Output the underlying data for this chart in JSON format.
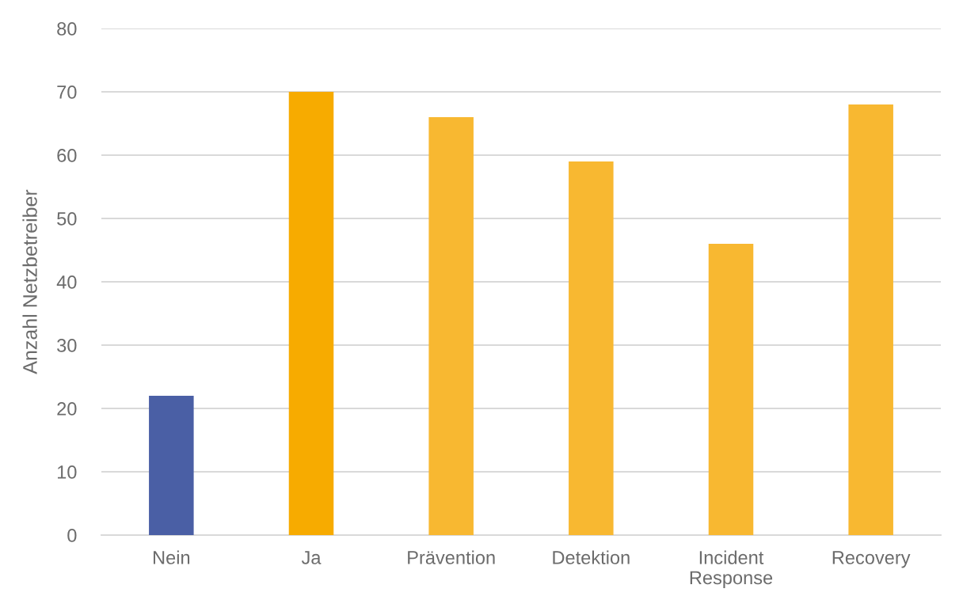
{
  "chart_data": {
    "type": "bar",
    "ylabel": "Anzahl Netzbetreiber",
    "categories": [
      "Nein",
      "Ja",
      "Prävention",
      "Detektion",
      "Incident\nResponse",
      "Recovery"
    ],
    "values": [
      22,
      70,
      66,
      59,
      46,
      68
    ],
    "colors": [
      "#4a5fa5",
      "#f7ab00",
      "#f8b831",
      "#f8b831",
      "#f8b831",
      "#f8b831"
    ],
    "ylim": [
      0,
      80
    ],
    "yticks": [
      0,
      10,
      20,
      30,
      40,
      50,
      60,
      70,
      80
    ],
    "grid": "y"
  }
}
